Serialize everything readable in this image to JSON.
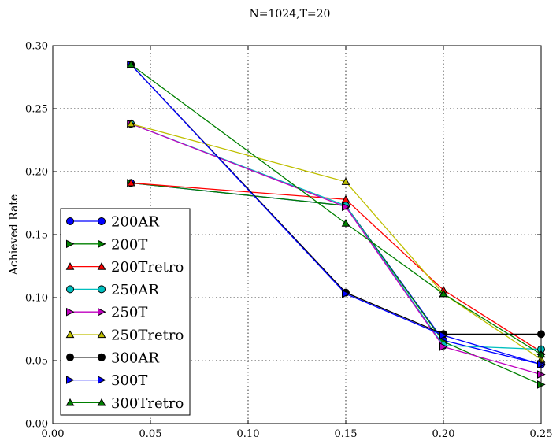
{
  "chart_data": {
    "type": "line",
    "title": "N=1024,T=20",
    "xlabel": "",
    "ylabel": "Achieved Rate",
    "xlim": [
      0.0,
      0.25
    ],
    "ylim": [
      0.0,
      0.3
    ],
    "xticks": [
      "0.00",
      "0.05",
      "0.10",
      "0.15",
      "0.20",
      "0.25"
    ],
    "yticks": [
      "0.00",
      "0.05",
      "0.10",
      "0.15",
      "0.20",
      "0.25",
      "0.30"
    ],
    "grid": true,
    "legend_position": "lower-left",
    "series": [
      {
        "name": "200AR",
        "color": "#0000ff",
        "marker": "circle",
        "x": [
          0.04,
          0.15,
          0.2,
          0.25
        ],
        "y": [
          0.191,
          0.173,
          0.066,
          0.047
        ]
      },
      {
        "name": "200T",
        "color": "#008000",
        "marker": "triangle-right",
        "x": [
          0.04,
          0.15,
          0.2,
          0.25
        ],
        "y": [
          0.191,
          0.173,
          0.065,
          0.031
        ]
      },
      {
        "name": "200Tretro",
        "color": "#ff0000",
        "marker": "triangle-up",
        "x": [
          0.04,
          0.15,
          0.2,
          0.25
        ],
        "y": [
          0.191,
          0.178,
          0.106,
          0.057
        ]
      },
      {
        "name": "250AR",
        "color": "#00bfbf",
        "marker": "circle",
        "x": [
          0.04,
          0.15,
          0.2,
          0.25
        ],
        "y": [
          0.238,
          0.173,
          0.062,
          0.059
        ]
      },
      {
        "name": "250T",
        "color": "#bf00bf",
        "marker": "triangle-right",
        "x": [
          0.04,
          0.15,
          0.2,
          0.25
        ],
        "y": [
          0.238,
          0.172,
          0.061,
          0.039
        ]
      },
      {
        "name": "250Tretro",
        "color": "#bfbf00",
        "marker": "triangle-up",
        "x": [
          0.04,
          0.15,
          0.2,
          0.25
        ],
        "y": [
          0.238,
          0.192,
          0.103,
          0.051
        ]
      },
      {
        "name": "300AR",
        "color": "#000000",
        "marker": "circle",
        "x": [
          0.04,
          0.15,
          0.2,
          0.25
        ],
        "y": [
          0.285,
          0.104,
          0.071,
          0.071
        ]
      },
      {
        "name": "300T",
        "color": "#0000ff",
        "marker": "triangle-right",
        "x": [
          0.04,
          0.15,
          0.2,
          0.25
        ],
        "y": [
          0.285,
          0.103,
          0.07,
          0.047
        ]
      },
      {
        "name": "300Tretro",
        "color": "#008000",
        "marker": "triangle-up",
        "x": [
          0.04,
          0.15,
          0.2,
          0.25
        ],
        "y": [
          0.285,
          0.159,
          0.103,
          0.055
        ]
      }
    ]
  }
}
